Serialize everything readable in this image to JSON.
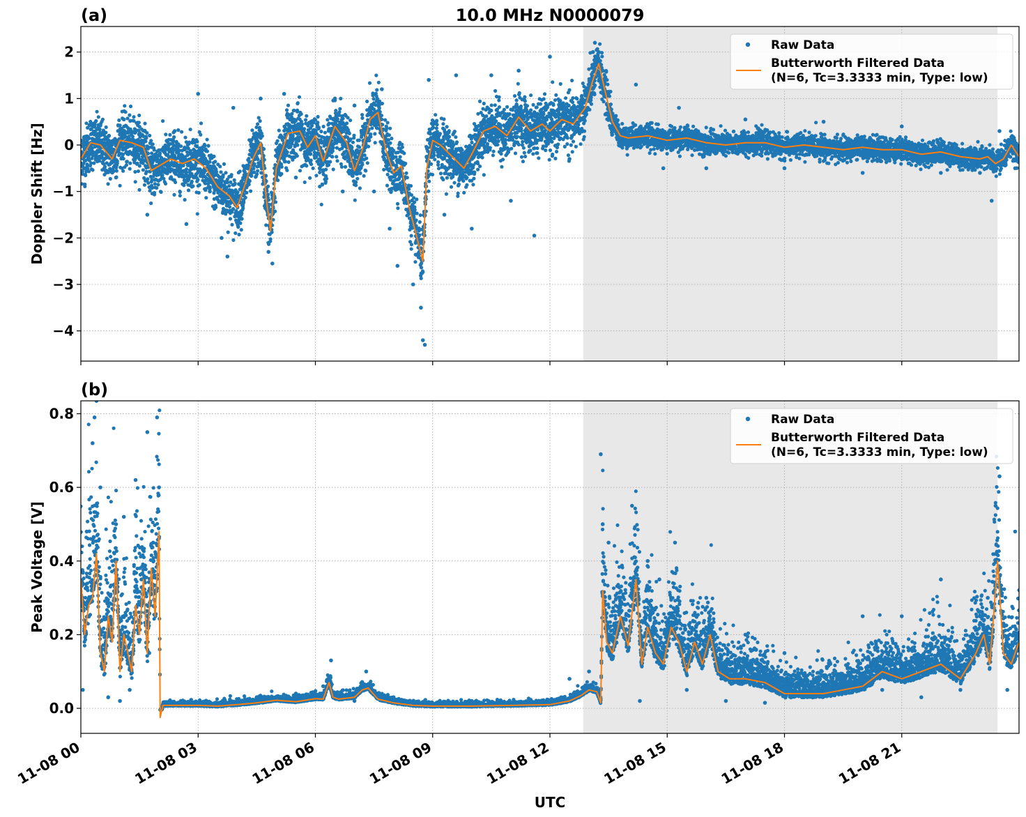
{
  "figure": {
    "title": "10.0 MHz N0000079",
    "xlabel": "UTC",
    "x_tick_labels": [
      "11-08 00",
      "11-08 03",
      "11-08 06",
      "11-08 09",
      "11-08 12",
      "11-08 15",
      "11-08 18",
      "11-08 21"
    ],
    "legend": {
      "raw_label": "Raw Data",
      "filtered_label_line1": "Butterworth Filtered Data",
      "filtered_label_line2": "(N=6, Tc=3.3333 min, Type: low)"
    },
    "colors": {
      "raw": "#1f77b4",
      "filtered": "#ff7f0e",
      "shade": "#e8e8e8",
      "grid": "#b0b0b0"
    }
  },
  "chart_data": [
    {
      "type": "scatter",
      "panel_label": "(a)",
      "title": "10.0 MHz N0000079",
      "xlabel": "",
      "ylabel": "Doppler Shift [Hz]",
      "x_range_hours": [
        0,
        24
      ],
      "ylim": [
        -4.65,
        2.55
      ],
      "y_ticks": [
        -4,
        -3,
        -2,
        -1,
        0,
        1,
        2
      ],
      "y_tick_labels": [
        "−4",
        "−3",
        "−2",
        "−1",
        "0",
        "1",
        "2"
      ],
      "shaded_span_hours": [
        12.85,
        23.45
      ],
      "grid": true,
      "legend_position": "upper-right",
      "series": [
        {
          "name": "Butterworth Filtered Data",
          "kind": "line",
          "x_hours": [
            0,
            0.25,
            0.5,
            0.8,
            1.0,
            1.3,
            1.6,
            1.8,
            2.0,
            2.3,
            2.6,
            2.9,
            3.2,
            3.5,
            3.8,
            4.0,
            4.2,
            4.4,
            4.6,
            4.75,
            4.85,
            5.0,
            5.3,
            5.6,
            5.8,
            6.0,
            6.2,
            6.5,
            6.8,
            7.0,
            7.2,
            7.4,
            7.6,
            7.8,
            8.0,
            8.2,
            8.4,
            8.6,
            8.75,
            8.85,
            9.0,
            9.2,
            9.5,
            9.8,
            10.0,
            10.3,
            10.6,
            10.9,
            11.2,
            11.5,
            11.8,
            12.0,
            12.3,
            12.6,
            12.9,
            13.1,
            13.25,
            13.4,
            13.6,
            13.8,
            14.0,
            14.5,
            15.0,
            15.5,
            16.0,
            16.5,
            17.0,
            17.5,
            18.0,
            18.5,
            19.0,
            19.5,
            20.0,
            20.5,
            21.0,
            21.5,
            22.0,
            22.5,
            23.0,
            23.2,
            23.4,
            23.6,
            23.8,
            24.0
          ],
          "y": [
            -0.3,
            0.05,
            0.0,
            -0.3,
            0.1,
            0.05,
            -0.05,
            -0.55,
            -0.45,
            -0.3,
            -0.4,
            -0.3,
            -0.5,
            -0.9,
            -1.1,
            -1.35,
            -0.85,
            -0.3,
            0.05,
            -1.2,
            -1.85,
            -0.5,
            0.25,
            0.3,
            -0.05,
            0.2,
            -0.35,
            0.4,
            0.05,
            -0.55,
            -0.1,
            0.55,
            0.7,
            -0.1,
            -0.6,
            -0.45,
            -1.35,
            -2.0,
            -2.5,
            -0.5,
            0.1,
            0.0,
            -0.25,
            -0.5,
            -0.2,
            0.3,
            0.4,
            0.2,
            0.6,
            0.3,
            0.45,
            0.3,
            0.55,
            0.45,
            0.8,
            1.4,
            1.75,
            1.2,
            0.5,
            0.2,
            0.15,
            0.2,
            0.1,
            0.15,
            0.05,
            0.0,
            0.05,
            0.05,
            -0.05,
            0.0,
            -0.05,
            -0.1,
            -0.05,
            -0.1,
            -0.1,
            -0.2,
            -0.15,
            -0.25,
            -0.3,
            -0.25,
            -0.4,
            -0.3,
            0.0,
            -0.25
          ]
        },
        {
          "name": "Raw Data",
          "kind": "points",
          "x_hours": [
            0.1,
            0.4,
            0.9,
            1.1,
            1.7,
            2.4,
            2.7,
            3.0,
            3.3,
            3.6,
            3.75,
            3.9,
            4.1,
            4.6,
            4.8,
            4.9,
            5.2,
            5.5,
            6.5,
            6.7,
            7.0,
            7.5,
            7.7,
            7.9,
            8.1,
            8.3,
            8.5,
            8.7,
            8.75,
            8.8,
            8.9,
            9.3,
            9.6,
            10.0,
            10.5,
            11.0,
            11.2,
            11.6,
            12.0,
            12.5,
            12.9,
            13.1,
            13.15,
            13.25,
            13.5,
            14.2,
            14.9,
            15.3,
            16.0,
            17.0,
            18.0,
            19.0,
            20.0,
            21.0,
            22.0,
            23.0,
            23.3,
            23.5,
            23.9
          ],
          "y": [
            -0.85,
            0.2,
            -0.7,
            0.55,
            -1.5,
            0.3,
            -1.7,
            1.1,
            -1.0,
            -2.0,
            -2.4,
            0.8,
            -1.5,
            1.0,
            -2.3,
            -2.55,
            1.1,
            -0.7,
            1.0,
            -1.0,
            0.85,
            -1.0,
            1.2,
            -1.8,
            -2.6,
            -0.4,
            -3.0,
            -3.5,
            -4.2,
            -4.3,
            1.4,
            -1.5,
            1.5,
            -1.8,
            1.5,
            -1.2,
            1.6,
            -1.95,
            1.9,
            -0.3,
            1.1,
            2.0,
            2.2,
            2.0,
            0.8,
            1.3,
            -0.5,
            0.8,
            -0.5,
            0.55,
            -0.5,
            0.5,
            -0.6,
            0.4,
            -0.6,
            -0.6,
            -1.2,
            0.3,
            -0.5
          ]
        }
      ]
    },
    {
      "type": "scatter",
      "panel_label": "(b)",
      "title": "",
      "xlabel": "UTC",
      "ylabel": "Peak Voltage [V]",
      "x_range_hours": [
        0,
        24
      ],
      "ylim": [
        -0.068,
        0.835
      ],
      "y_ticks": [
        0.0,
        0.2,
        0.4,
        0.6,
        0.8
      ],
      "y_tick_labels": [
        "0.0",
        "0.2",
        "0.4",
        "0.6",
        "0.8"
      ],
      "shaded_span_hours": [
        12.85,
        23.45
      ],
      "grid": true,
      "legend_position": "upper-right",
      "series": [
        {
          "name": "Butterworth Filtered Data",
          "kind": "line",
          "x_hours": [
            0,
            0.1,
            0.2,
            0.3,
            0.4,
            0.5,
            0.6,
            0.7,
            0.8,
            0.9,
            1.0,
            1.1,
            1.2,
            1.3,
            1.4,
            1.5,
            1.6,
            1.7,
            1.8,
            1.9,
            2.0,
            2.03,
            2.1,
            2.5,
            3.0,
            3.5,
            4.0,
            4.5,
            5.0,
            5.5,
            6.0,
            6.2,
            6.35,
            6.45,
            6.6,
            7.0,
            7.2,
            7.35,
            7.6,
            8.0,
            8.5,
            9.0,
            10.0,
            11.0,
            12.0,
            12.5,
            12.8,
            13.0,
            13.2,
            13.3,
            13.35,
            13.45,
            13.6,
            13.8,
            14.0,
            14.2,
            14.35,
            14.5,
            14.7,
            14.9,
            15.1,
            15.3,
            15.5,
            15.7,
            15.9,
            16.1,
            16.3,
            16.6,
            17.0,
            17.5,
            18.0,
            18.5,
            19.0,
            19.5,
            20.0,
            20.5,
            21.0,
            21.5,
            22.0,
            22.5,
            22.9,
            23.1,
            23.25,
            23.35,
            23.45,
            23.6,
            23.8,
            24.0
          ],
          "y": [
            0.35,
            0.2,
            0.28,
            0.3,
            0.42,
            0.15,
            0.1,
            0.25,
            0.18,
            0.4,
            0.1,
            0.2,
            0.15,
            0.1,
            0.28,
            0.2,
            0.35,
            0.15,
            0.38,
            0.25,
            0.48,
            -0.025,
            0.008,
            0.008,
            0.008,
            0.006,
            0.01,
            0.015,
            0.022,
            0.018,
            0.026,
            0.025,
            0.07,
            0.03,
            0.025,
            0.03,
            0.05,
            0.055,
            0.025,
            0.015,
            0.008,
            0.006,
            0.006,
            0.008,
            0.01,
            0.02,
            0.035,
            0.05,
            0.045,
            0.015,
            0.32,
            0.18,
            0.15,
            0.25,
            0.17,
            0.35,
            0.12,
            0.22,
            0.15,
            0.12,
            0.22,
            0.18,
            0.1,
            0.18,
            0.12,
            0.2,
            0.1,
            0.08,
            0.08,
            0.07,
            0.04,
            0.04,
            0.04,
            0.05,
            0.06,
            0.1,
            0.08,
            0.1,
            0.12,
            0.08,
            0.15,
            0.2,
            0.12,
            0.25,
            0.4,
            0.15,
            0.12,
            0.18
          ]
        },
        {
          "name": "Raw Data",
          "kind": "points",
          "x_hours": [
            0.05,
            0.15,
            0.3,
            0.35,
            0.5,
            0.7,
            0.8,
            0.9,
            1.0,
            1.1,
            1.25,
            1.4,
            1.55,
            1.7,
            1.75,
            1.85,
            1.95,
            2.0,
            2.05,
            3.0,
            4.5,
            5.5,
            6.2,
            6.4,
            7.0,
            7.3,
            8.0,
            10.0,
            12.0,
            12.5,
            13.0,
            13.3,
            13.35,
            13.5,
            13.8,
            14.1,
            14.3,
            14.5,
            14.8,
            15.2,
            15.5,
            16.0,
            16.5,
            17.0,
            17.5,
            18.0,
            18.5,
            19.0,
            19.5,
            20.0,
            20.5,
            21.0,
            21.5,
            22.0,
            22.5,
            23.0,
            23.2,
            23.4,
            23.5,
            23.7,
            23.9
          ],
          "y": [
            0.05,
            0.48,
            0.72,
            0.79,
            0.6,
            0.03,
            0.4,
            0.5,
            0.02,
            0.52,
            0.05,
            0.62,
            0.35,
            0.75,
            0.15,
            0.45,
            0.79,
            0.6,
            0.0,
            0.015,
            0.03,
            0.04,
            0.06,
            0.13,
            0.02,
            0.1,
            0.03,
            0.02,
            0.02,
            0.08,
            0.1,
            0.69,
            0.5,
            0.45,
            0.3,
            0.55,
            0.02,
            0.4,
            0.35,
            0.45,
            0.05,
            0.3,
            0.02,
            0.2,
            0.015,
            0.15,
            0.03,
            0.07,
            0.05,
            0.25,
            0.05,
            0.25,
            0.03,
            0.35,
            0.05,
            0.25,
            0.3,
            0.55,
            0.63,
            0.05,
            0.48
          ]
        }
      ]
    }
  ]
}
